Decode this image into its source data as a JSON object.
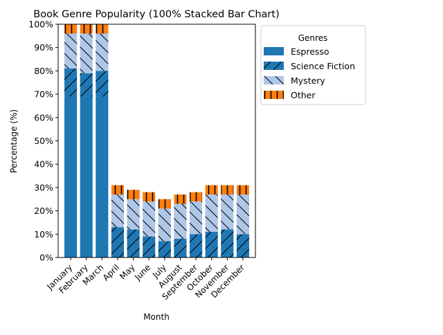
{
  "chart_data": {
    "type": "bar",
    "stacked": true,
    "title": "Book Genre Popularity (100% Stacked Bar Chart)",
    "xlabel": "Month",
    "ylabel": "Percentage (%)",
    "ylim": [
      0,
      100
    ],
    "yticks": [
      "0%",
      "10%",
      "20%",
      "30%",
      "40%",
      "50%",
      "60%",
      "70%",
      "80%",
      "90%",
      "100%"
    ],
    "categories": [
      "January",
      "February",
      "March",
      "April",
      "May",
      "June",
      "July",
      "August",
      "September",
      "October",
      "November",
      "December"
    ],
    "legend": {
      "title": "Genres",
      "placement": "outside-top-right"
    },
    "series": [
      {
        "name": "Espresso",
        "color": "#1f77b4",
        "hatch": "none",
        "values": [
          69,
          69,
          69,
          0,
          0,
          0,
          0,
          0,
          0,
          0,
          0,
          0
        ]
      },
      {
        "name": "Science Fiction",
        "color": "#1f77b4",
        "hatch": "slash",
        "values": [
          12,
          10,
          11,
          13,
          12,
          9,
          7,
          8,
          10,
          11,
          12,
          10
        ]
      },
      {
        "name": "Mystery",
        "color": "#aec7e8",
        "hatch": "backslash",
        "values": [
          15,
          17,
          16,
          14,
          13,
          15,
          14,
          15,
          14,
          16,
          15,
          17
        ]
      },
      {
        "name": "Other",
        "color": "#ff7f0e",
        "hatch": "vertical",
        "values": [
          4,
          4,
          4,
          4,
          4,
          4,
          4,
          4,
          4,
          4,
          4,
          4
        ]
      }
    ]
  }
}
